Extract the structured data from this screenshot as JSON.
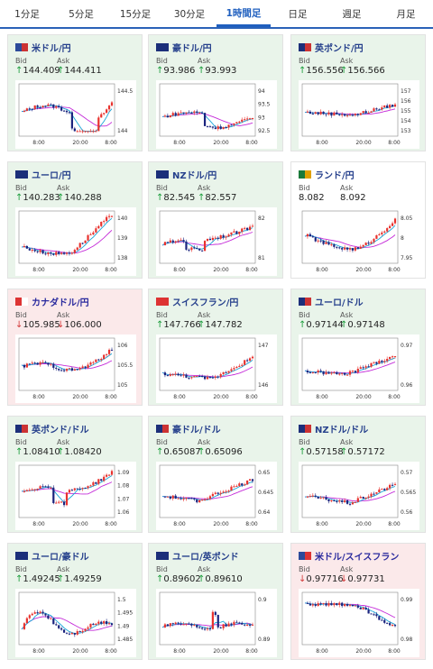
{
  "tabs": [
    "1分足",
    "5分足",
    "15分足",
    "30分足",
    "1時間足",
    "日足",
    "週足",
    "月足"
  ],
  "active_tab": 4,
  "labels": {
    "bid": "Bid",
    "ask": "Ask"
  },
  "cards": [
    {
      "pair": "米ドル/円",
      "state": "up",
      "flag": [
        "#2c4a9a",
        "#c33"
      ],
      "bid": "144.409",
      "ask": "144.411",
      "bid_dir": "up",
      "ask_dir": "up",
      "yticks": [
        "144.5",
        "144"
      ],
      "xticks": [
        "8:00",
        "20:00",
        "8:00"
      ]
    },
    {
      "pair": "豪ドル/円",
      "state": "up",
      "flag": [
        "#1c2f7a",
        "#1c2f7a"
      ],
      "bid": "93.986",
      "ask": "93.993",
      "bid_dir": "up",
      "ask_dir": "up",
      "yticks": [
        "94",
        "93.5",
        "93",
        "92.5"
      ],
      "xticks": [
        "8:00",
        "20:00",
        "8:00"
      ]
    },
    {
      "pair": "英ポンド/円",
      "state": "up",
      "flag": [
        "#1c2f7a",
        "#c33"
      ],
      "bid": "156.556",
      "ask": "156.566",
      "bid_dir": "up",
      "ask_dir": "up",
      "yticks": [
        "157",
        "156",
        "155",
        "154",
        "153"
      ],
      "xticks": [
        "8:00",
        "20:00",
        "8:00"
      ]
    },
    {
      "pair": "ユーロ/円",
      "state": "up",
      "flag": [
        "#1c2f7a",
        "#1c2f7a"
      ],
      "bid": "140.283",
      "ask": "140.288",
      "bid_dir": "up",
      "ask_dir": "up",
      "yticks": [
        "140",
        "139",
        "138"
      ],
      "xticks": [
        "8:00",
        "20:00",
        "8:00"
      ]
    },
    {
      "pair": "NZドル/円",
      "state": "up",
      "flag": [
        "#1c2f7a",
        "#1c2f7a"
      ],
      "bid": "82.545",
      "ask": "82.557",
      "bid_dir": "up",
      "ask_dir": "up",
      "yticks": [
        "82",
        "81"
      ],
      "xticks": [
        "8:00",
        "20:00",
        "8:00"
      ]
    },
    {
      "pair": "ランド/円",
      "state": "neutral",
      "flag": [
        "#1a7a3a",
        "#e0a000"
      ],
      "bid": "8.082",
      "ask": "8.092",
      "bid_dir": "none",
      "ask_dir": "none",
      "yticks": [
        "8.05",
        "8",
        "7.95"
      ],
      "xticks": [
        "8:00",
        "20:00",
        "8:00"
      ]
    },
    {
      "pair": "カナダドル/円",
      "state": "down",
      "flag": [
        "#d33",
        "#ffffff"
      ],
      "bid": "105.985",
      "ask": "106.000",
      "bid_dir": "down",
      "ask_dir": "down",
      "yticks": [
        "106",
        "105.5",
        "105"
      ],
      "xticks": [
        "8:00",
        "20:00",
        "8:00"
      ]
    },
    {
      "pair": "スイスフラン/円",
      "state": "up",
      "flag": [
        "#d33",
        "#d33"
      ],
      "bid": "147.766",
      "ask": "147.782",
      "bid_dir": "up",
      "ask_dir": "up",
      "yticks": [
        "147",
        "146"
      ],
      "xticks": [
        "8:00",
        "20:00",
        "8:00"
      ]
    },
    {
      "pair": "ユーロ/ドル",
      "state": "up",
      "flag": [
        "#1c2f7a",
        "#c33"
      ],
      "bid": "0.97144",
      "ask": "0.97148",
      "bid_dir": "up",
      "ask_dir": "up",
      "yticks": [
        "0.97",
        "0.96"
      ],
      "xticks": [
        "8:00",
        "20:00",
        "8:00"
      ]
    },
    {
      "pair": "英ポンド/ドル",
      "state": "up",
      "flag": [
        "#1c2f7a",
        "#c33"
      ],
      "bid": "1.08410",
      "ask": "1.08420",
      "bid_dir": "up",
      "ask_dir": "up",
      "yticks": [
        "1.09",
        "1.08",
        "1.07",
        "1.06"
      ],
      "xticks": [
        "8:00",
        "20:00",
        "8:00"
      ]
    },
    {
      "pair": "豪ドル/ドル",
      "state": "up",
      "flag": [
        "#1c2f7a",
        "#c33"
      ],
      "bid": "0.65087",
      "ask": "0.65096",
      "bid_dir": "up",
      "ask_dir": "up",
      "yticks": [
        "0.65",
        "0.645",
        "0.64"
      ],
      "xticks": [
        "8:00",
        "20:00",
        "8:00"
      ]
    },
    {
      "pair": "NZドル/ドル",
      "state": "up",
      "flag": [
        "#1c2f7a",
        "#c33"
      ],
      "bid": "0.57158",
      "ask": "0.57172",
      "bid_dir": "up",
      "ask_dir": "up",
      "yticks": [
        "0.57",
        "0.565",
        "0.56"
      ],
      "xticks": [
        "8:00",
        "20:00",
        "8:00"
      ]
    },
    {
      "pair": "ユーロ/豪ドル",
      "state": "up",
      "flag": [
        "#1c2f7a",
        "#1c2f7a"
      ],
      "bid": "1.49245",
      "ask": "1.49259",
      "bid_dir": "up",
      "ask_dir": "up",
      "yticks": [
        "1.5",
        "1.495",
        "1.49",
        "1.485"
      ],
      "xticks": [
        "8:00",
        "20:00",
        "8:00"
      ]
    },
    {
      "pair": "ユーロ/英ポンド",
      "state": "up",
      "flag": [
        "#1c2f7a",
        "#1c2f7a"
      ],
      "bid": "0.89602",
      "ask": "0.89610",
      "bid_dir": "up",
      "ask_dir": "up",
      "yticks": [
        "0.9",
        "0.89"
      ],
      "xticks": [
        "8:00",
        "20:00",
        "8:00"
      ]
    },
    {
      "pair": "米ドル/スイスフラン",
      "state": "down",
      "flag": [
        "#2c4a9a",
        "#d33"
      ],
      "bid": "0.97716",
      "ask": "0.97731",
      "bid_dir": "down",
      "ask_dir": "down",
      "yticks": [
        "0.99",
        "0.98"
      ],
      "xticks": [
        "8:00",
        "20:00",
        "8:00"
      ]
    }
  ],
  "colors": {
    "up_candle": "#e8322e",
    "down_candle": "#1a237e",
    "ma_fast": "#19a6d8",
    "ma_slow": "#c42ad8",
    "tab_accent": "#1f5fbf"
  }
}
